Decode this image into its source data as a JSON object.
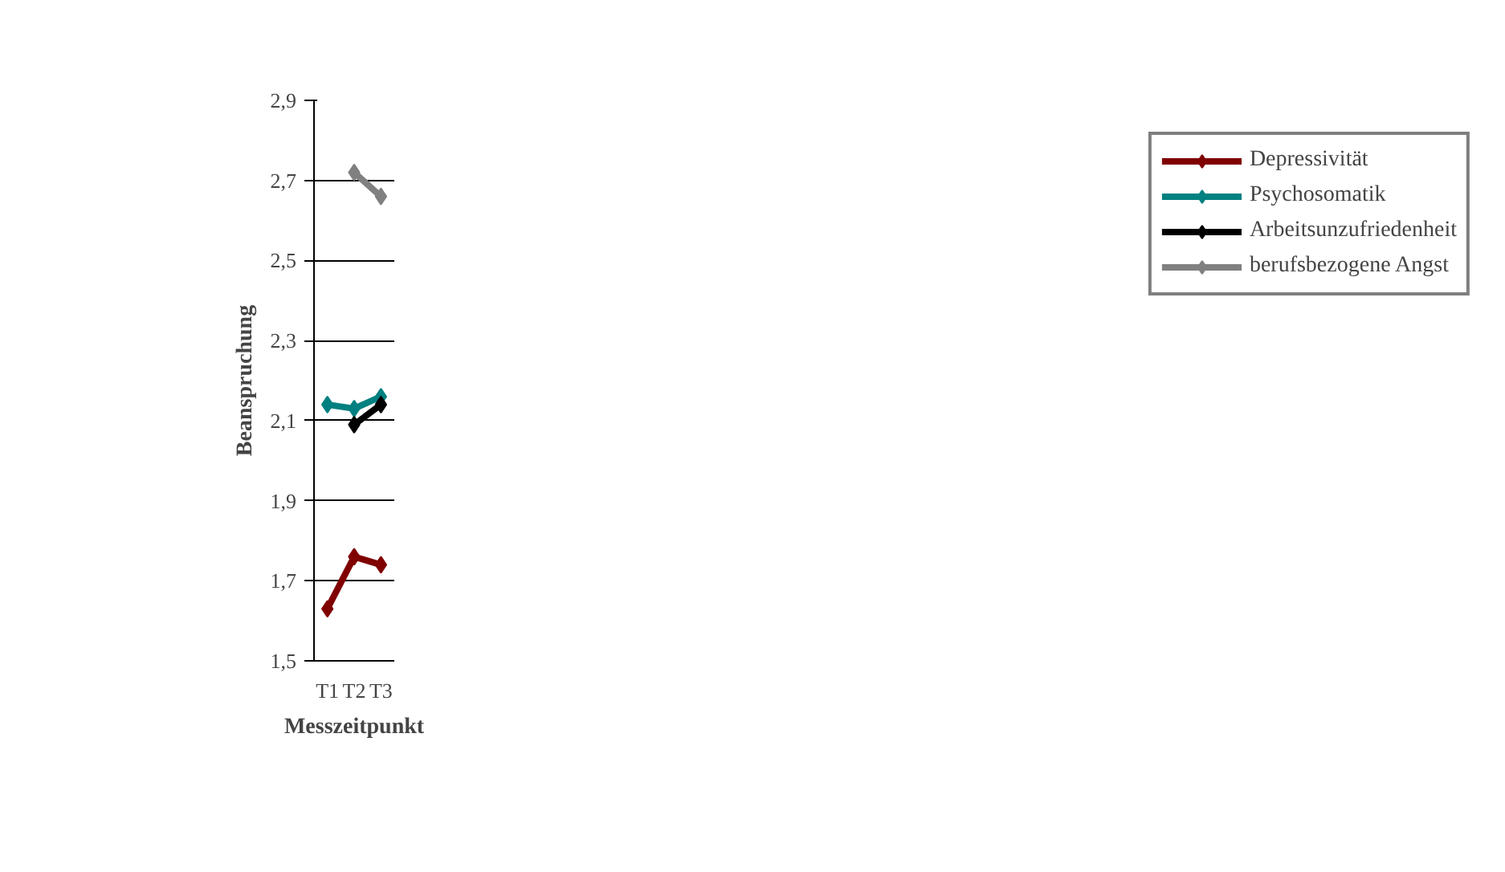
{
  "chart_data": {
    "type": "line",
    "xlabel": "Messzeitpunkt",
    "ylabel": "Beanspruchung",
    "categories": [
      "T1",
      "T2",
      "T3"
    ],
    "ylim": [
      1.5,
      2.9
    ],
    "yticks": [
      {
        "value": 1.5,
        "label": "1,5"
      },
      {
        "value": 1.7,
        "label": "1,7"
      },
      {
        "value": 1.9,
        "label": "1,9"
      },
      {
        "value": 2.1,
        "label": "2,1"
      },
      {
        "value": 2.3,
        "label": "2,3"
      },
      {
        "value": 2.5,
        "label": "2,5"
      },
      {
        "value": 2.7,
        "label": "2,7"
      },
      {
        "value": 2.9,
        "label": "2,9"
      }
    ],
    "grid": "y",
    "legend": "right",
    "marker": "diamond",
    "line_style": "solid",
    "series": [
      {
        "name": "Depressivität",
        "color": "#800000",
        "values": [
          1.63,
          1.76,
          1.74
        ]
      },
      {
        "name": "Psychosomatik",
        "color": "#008080",
        "values": [
          2.14,
          2.13,
          2.16
        ]
      },
      {
        "name": "Arbeitsunzufriedenheit",
        "color": "#000000",
        "values": [
          null,
          2.09,
          2.14
        ]
      },
      {
        "name": "berufsbezogene Angst",
        "color": "#808080",
        "values": [
          null,
          2.72,
          2.66
        ]
      }
    ]
  }
}
